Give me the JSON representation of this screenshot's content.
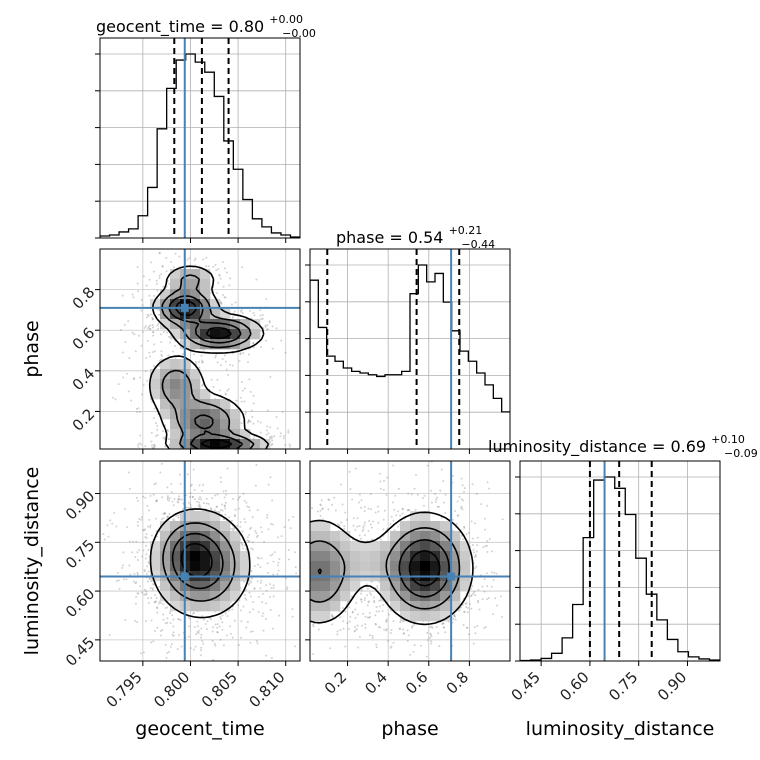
{
  "chart_data": {
    "type": "corner",
    "parameters": [
      "geocent_time",
      "phase",
      "luminosity_distance"
    ],
    "titles": [
      {
        "param": "geocent_time",
        "prefix": "geocent_time = ",
        "median": "0.80",
        "plus": "+0.00",
        "minus": "−0.00"
      },
      {
        "param": "phase",
        "prefix": "phase = ",
        "median": "0.54",
        "plus": "+0.21",
        "minus": "−0.44"
      },
      {
        "param": "luminosity_distance",
        "prefix": "luminosity_distance = ",
        "median": "0.69",
        "plus": "+0.10",
        "minus": "−0.09"
      }
    ],
    "axis_labels": {
      "x": [
        "geocent_time",
        "phase",
        "luminosity_distance"
      ],
      "y": [
        "phase",
        "luminosity_distance"
      ]
    },
    "ranges": {
      "geocent_time": [
        0.7905,
        0.8115
      ],
      "phase": [
        0.015,
        1.0
      ],
      "luminosity_distance": [
        0.385,
        1.0
      ]
    },
    "ticks": {
      "geocent_time": {
        "values": [
          0.795,
          0.8,
          0.805,
          0.81
        ],
        "labels": [
          "0.795",
          "0.800",
          "0.805",
          "0.810"
        ]
      },
      "phase": {
        "values": [
          0.2,
          0.4,
          0.6,
          0.8
        ],
        "labels": [
          "0.2",
          "0.4",
          "0.6",
          "0.8"
        ]
      },
      "luminosity_distance": {
        "values": [
          0.45,
          0.6,
          0.75,
          0.9
        ],
        "labels": [
          "0.45",
          "0.60",
          "0.75",
          "0.90"
        ]
      }
    },
    "truths": {
      "geocent_time": 0.7994,
      "phase": 0.71,
      "luminosity_distance": 0.645
    },
    "quantiles": {
      "geocent_time": [
        0.7983,
        0.8012,
        0.804
      ],
      "phase": [
        0.1,
        0.54,
        0.75
      ],
      "luminosity_distance": [
        0.6,
        0.69,
        0.79
      ]
    },
    "marginals": {
      "geocent_time": {
        "edges_range": [
          0.7905,
          0.8115
        ],
        "counts": [
          2,
          3,
          6,
          9,
          22,
          50,
          108,
          148,
          176,
          182,
          174,
          164,
          140,
          96,
          68,
          38,
          19,
          11,
          5,
          3,
          1
        ]
      },
      "phase": {
        "edges_range": [
          0.015,
          1.0
        ],
        "counts": [
          100,
          72,
          55,
          52,
          48,
          46,
          45,
          44,
          43,
          44,
          44,
          46,
          92,
          109,
          99,
          104,
          87,
          70,
          58,
          52,
          45,
          38,
          30,
          22
        ]
      },
      "luminosity_distance": {
        "edges_range": [
          0.385,
          1.0
        ],
        "counts": [
          1,
          2,
          5,
          15,
          45,
          110,
          240,
          352,
          358,
          336,
          285,
          200,
          130,
          80,
          42,
          18,
          8,
          4,
          2
        ]
      }
    },
    "grid": true
  }
}
